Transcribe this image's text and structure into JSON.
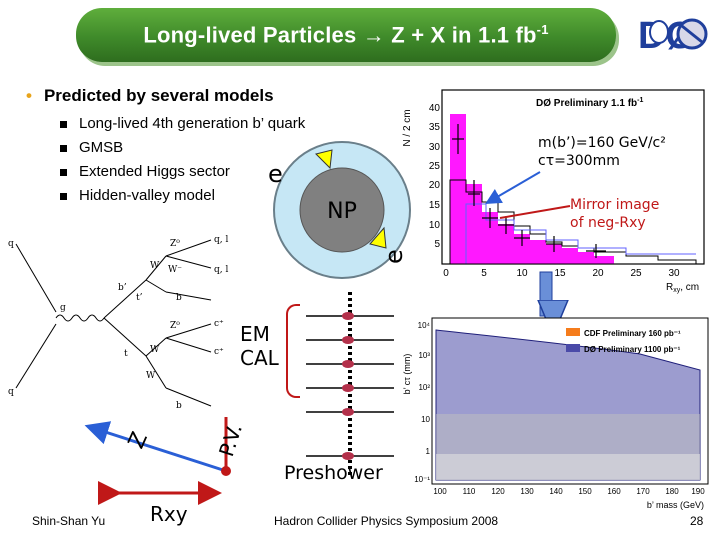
{
  "header": {
    "title_pre": "Long-lived Particles ",
    "arrow": "→",
    "title_post": " Z + X in 1.1 fb",
    "title_sup": "-1"
  },
  "logo": {
    "text": "DØ"
  },
  "bullets": {
    "main": "Predicted by several models",
    "items": [
      "Long-lived 4th generation b’ quark",
      "GMSB",
      "Extended Higgs sector",
      "Hidden-valley model"
    ]
  },
  "detector": {
    "np": "NP",
    "electron_symbol": "e",
    "em_cal": [
      "EM",
      "CAL"
    ],
    "preshower": "Preshower",
    "pv": "P.V.",
    "z": "Z",
    "rxy": "Rxy"
  },
  "plot_top": {
    "header": "DØ Preliminary 1.1 fb",
    "header_sup": "-1",
    "ylabel": "N / 2 cm",
    "xlabel": "R",
    "xlabel_sub": "xy",
    "xlabel_unit": ", cm",
    "xticks": [
      "0",
      "5",
      "10",
      "15",
      "20",
      "25",
      "30"
    ],
    "yticks": [
      "5",
      "10",
      "15",
      "20",
      "25",
      "30",
      "35",
      "40"
    ],
    "annotation1_line1": "m(b’)=160 GeV/c²",
    "annotation1_line2": "cτ=300mm",
    "annotation2_line1": "Mirror image",
    "annotation2_line2": "of neg-Rxy"
  },
  "plot_bottom": {
    "ylabel": "b’ cτ (mm)",
    "xlabel": "b’ mass (GeV)",
    "legend": [
      "CDF Preliminary 160 pb⁻¹",
      "DØ Preliminary 1100 pb⁻¹"
    ],
    "xticks": [
      "100",
      "110",
      "120",
      "130",
      "140",
      "150",
      "160",
      "170",
      "180",
      "190"
    ],
    "yticks": [
      "10⁴",
      "10³",
      "10²",
      "10",
      "1",
      "10⁻¹"
    ]
  },
  "feynman": {
    "labels": [
      "q",
      "g",
      "q",
      "b’",
      "t’",
      "W",
      "W⁻",
      "Z⁰",
      "q, l",
      "q, l",
      "b",
      "W",
      "t",
      "Z⁰",
      "c⁺",
      "c⁺",
      "b",
      "W"
    ]
  },
  "colors": {
    "title_green": "#3f8a2a",
    "bullet_gold": "#e8a41b",
    "np_grey": "#808080",
    "ring_blue": "#c6e7f5",
    "magenta": "#ff00ff",
    "orange": "#f57c1c",
    "arrow_blue": "#2a5fd6",
    "red_line": "#c01818"
  },
  "footer": {
    "author": "Shin-Shan Yu",
    "conference": "Hadron Collider Physics Symposium 2008",
    "page": "28"
  }
}
